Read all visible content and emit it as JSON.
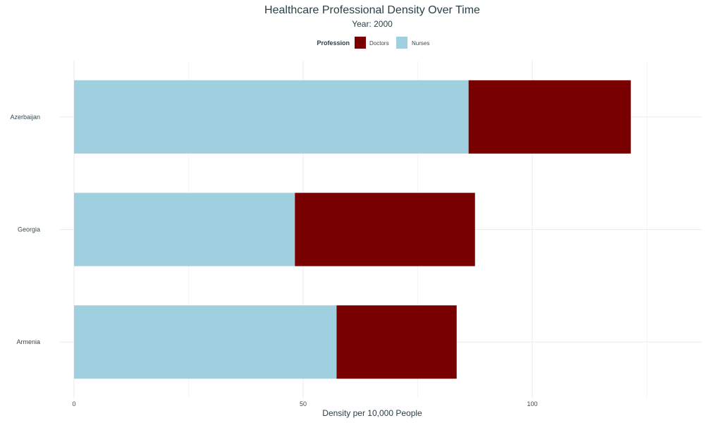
{
  "chart_data": {
    "type": "bar",
    "orientation": "horizontal",
    "stacked": true,
    "title": "Healthcare Professional Density Over Time",
    "subtitle": "Year: 2000",
    "xlabel": "Density per 10,000 People",
    "ylabel": "",
    "xlim": [
      0,
      136
    ],
    "x_ticks": [
      0,
      50,
      100
    ],
    "x_tick_labels": [
      "0",
      "50",
      "100"
    ],
    "categories": [
      "Azerbaijan",
      "Georgia",
      "Armenia"
    ],
    "series": [
      {
        "name": "Nurses",
        "color": "#a0cfe0",
        "values": [
          86.1,
          48.2,
          57.3
        ]
      },
      {
        "name": "Doctors",
        "color": "#780000",
        "values": [
          35.4,
          39.3,
          26.2
        ]
      }
    ],
    "legend": {
      "title": "Profession",
      "placement": "top",
      "entries": [
        {
          "label": "Doctors",
          "color": "#780000"
        },
        {
          "label": "Nurses",
          "color": "#a0cfe0"
        }
      ]
    },
    "grid": true
  }
}
